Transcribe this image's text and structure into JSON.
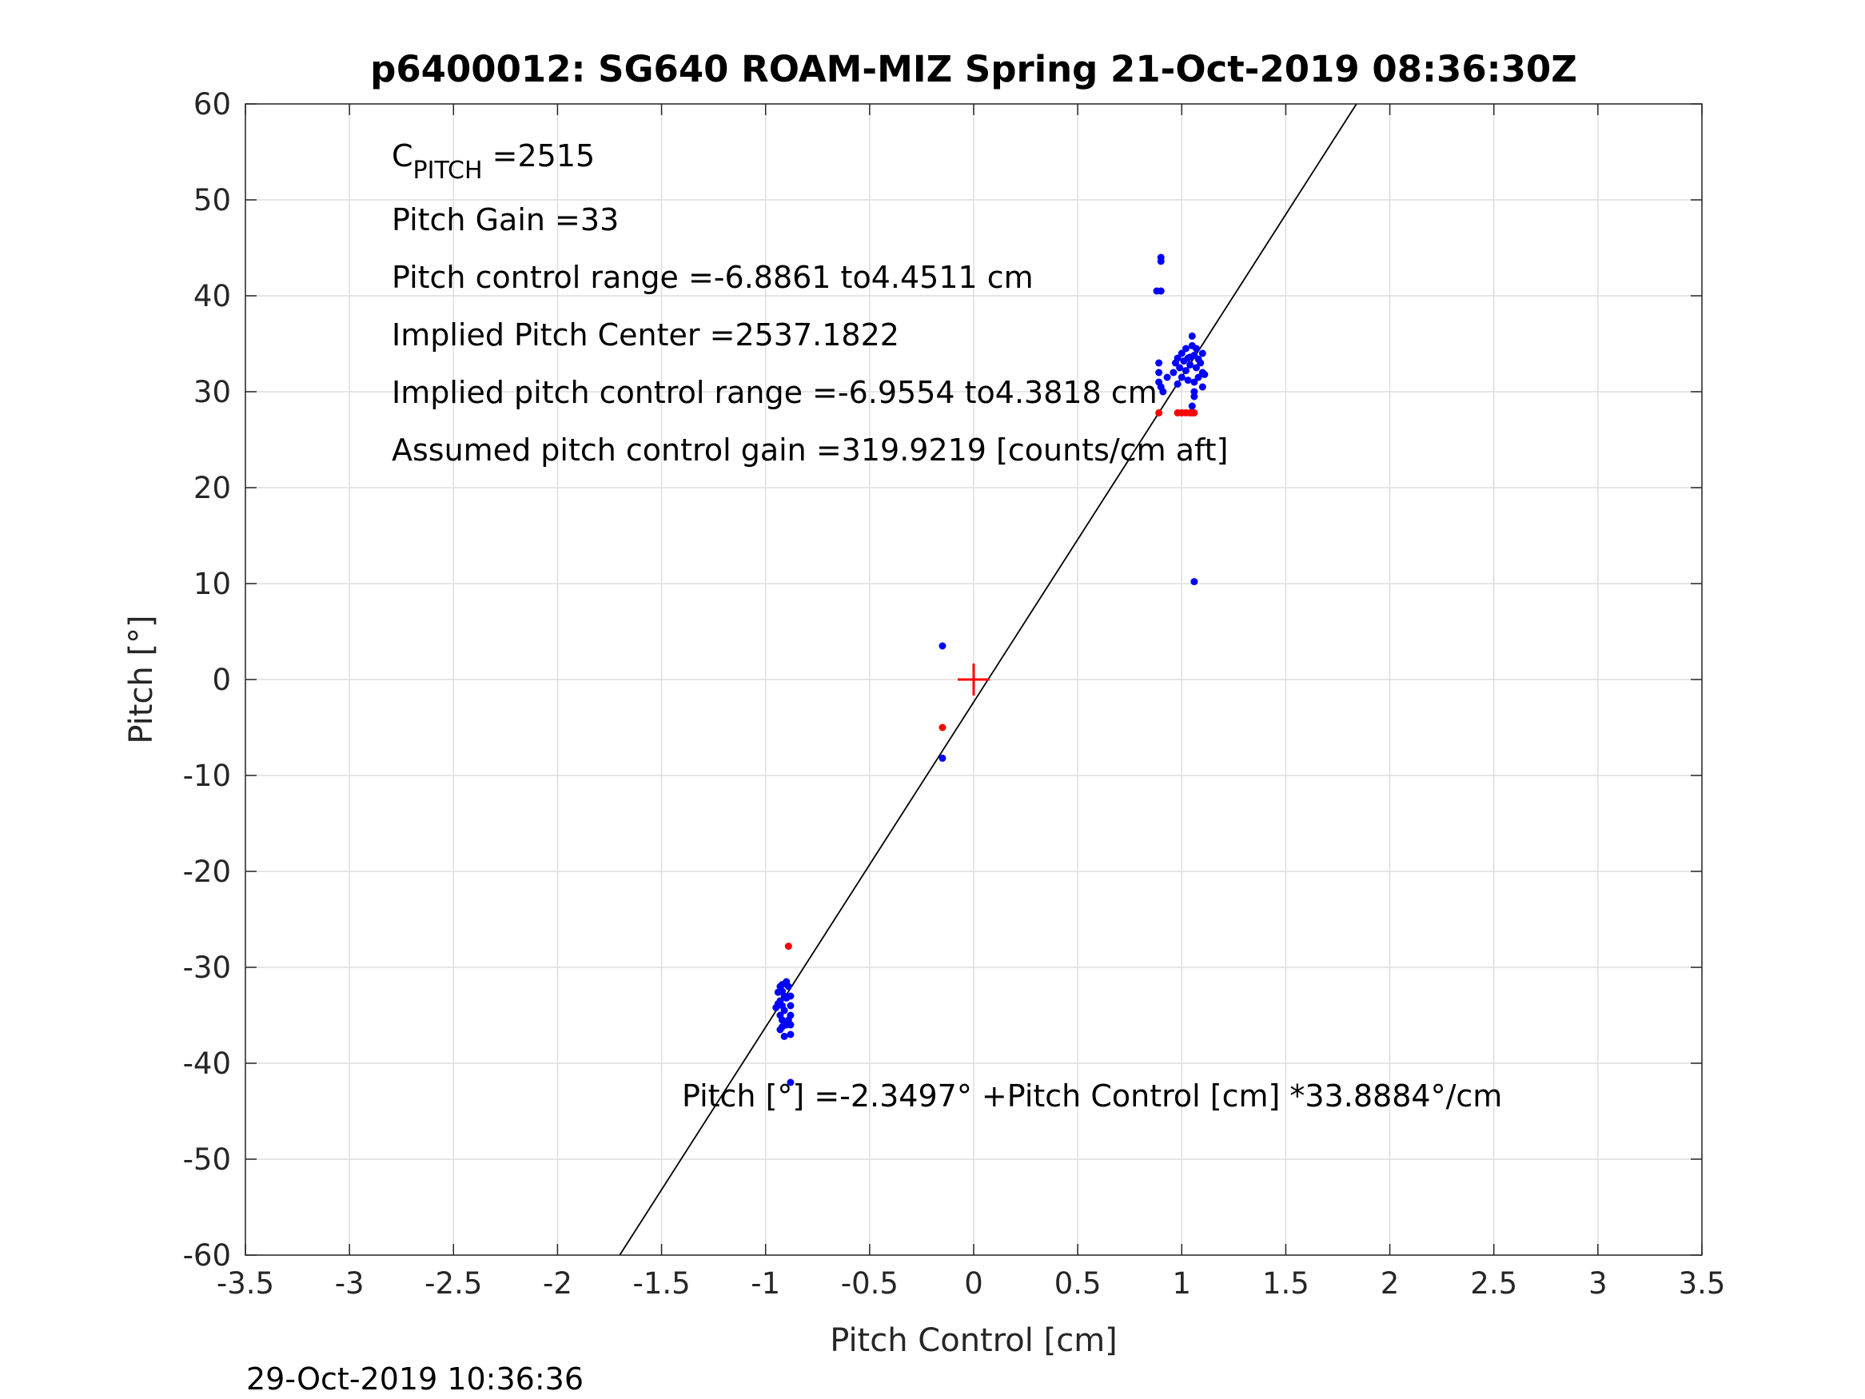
{
  "chart_data": {
    "type": "scatter",
    "title": "p6400012: SG640 ROAM-MIZ Spring 21-Oct-2019 08:36:30Z",
    "xlabel": "Pitch Control [cm]",
    "ylabel": "Pitch [°]",
    "xlim": [
      -3.5,
      3.5
    ],
    "ylim": [
      -60,
      60
    ],
    "xticks": [
      -3.5,
      -3,
      -2.5,
      -2,
      -1.5,
      -1,
      -0.5,
      0,
      0.5,
      1,
      1.5,
      2,
      2.5,
      3,
      3.5
    ],
    "yticks": [
      -60,
      -50,
      -40,
      -30,
      -20,
      -10,
      0,
      10,
      20,
      30,
      40,
      50,
      60
    ],
    "grid": true,
    "footer": "29-Oct-2019 10:36:36",
    "annotations": {
      "c_pitch_main": "C",
      "c_pitch_sub": "PITCH",
      "c_pitch_value": " =2515",
      "pitch_gain": "Pitch Gain =33",
      "pitch_control_range": "Pitch control range =-6.8861 to4.4511 cm",
      "implied_pitch_center": "Implied Pitch Center =2537.1822",
      "implied_pitch_control_range": "Implied pitch control range =-6.9554 to4.3818 cm",
      "assumed_gain": "Assumed pitch control gain =319.9219 [counts/cm aft]",
      "fit_equation": "Pitch [°] =-2.3497° +Pitch Control [cm] *33.8884°/cm"
    },
    "fit_line": {
      "intercept": -2.3497,
      "slope": 33.8884
    },
    "center_marker": {
      "x": 0,
      "y": 0
    },
    "series": [
      {
        "color": "#0000ff",
        "points": [
          [
            -0.93,
            -32
          ],
          [
            -0.92,
            -32.5
          ],
          [
            -0.91,
            -33
          ],
          [
            -0.93,
            -33.5
          ],
          [
            -0.92,
            -34
          ],
          [
            -0.91,
            -34.5
          ],
          [
            -0.93,
            -35
          ],
          [
            -0.92,
            -35.5
          ],
          [
            -0.9,
            -36
          ],
          [
            -0.94,
            -33.8
          ],
          [
            -0.89,
            -32
          ],
          [
            -0.88,
            -33
          ],
          [
            -0.88,
            -34
          ],
          [
            -0.88,
            -35
          ],
          [
            -0.88,
            -36
          ],
          [
            -0.88,
            -37
          ],
          [
            -0.9,
            -31.5
          ],
          [
            -0.92,
            -31.8
          ],
          [
            -0.95,
            -34.2
          ],
          [
            -0.93,
            -36.5
          ],
          [
            -0.91,
            -37.2
          ],
          [
            -0.89,
            -35.5
          ],
          [
            -0.94,
            -32.6
          ],
          [
            -0.9,
            -33.2
          ],
          [
            -0.92,
            -36.2
          ],
          [
            -0.88,
            -42
          ],
          [
            0.9,
            44
          ],
          [
            0.9,
            43.6
          ],
          [
            0.88,
            40.5
          ],
          [
            0.9,
            40.5
          ],
          [
            0.89,
            33
          ],
          [
            0.89,
            32
          ],
          [
            0.89,
            31
          ],
          [
            0.9,
            30.5
          ],
          [
            0.91,
            30
          ],
          [
            0.93,
            31.5
          ],
          [
            0.96,
            32
          ],
          [
            0.97,
            33
          ],
          [
            0.98,
            33.5
          ],
          [
            0.99,
            32.5
          ],
          [
            1.0,
            34
          ],
          [
            1.01,
            33.2
          ],
          [
            1.02,
            34.5
          ],
          [
            1.03,
            33.5
          ],
          [
            1.04,
            32.8
          ],
          [
            1.05,
            35.8
          ],
          [
            1.05,
            34.8
          ],
          [
            1.06,
            33.8
          ],
          [
            1.07,
            32.5
          ],
          [
            1.08,
            31.5
          ],
          [
            1.09,
            33
          ],
          [
            1.1,
            34
          ],
          [
            1.1,
            32
          ],
          [
            1.1,
            30.5
          ],
          [
            1.11,
            31.8
          ],
          [
            1.06,
            31
          ],
          [
            1.06,
            30
          ],
          [
            1.06,
            29.5
          ],
          [
            1.05,
            28.5
          ],
          [
            1.07,
            34.5
          ],
          [
            1.03,
            31.2
          ],
          [
            1.02,
            32.2
          ],
          [
            1.0,
            31.5
          ],
          [
            0.98,
            30.8
          ],
          [
            1.04,
            33.6
          ],
          [
            1.08,
            33.4
          ],
          [
            1.06,
            10.2
          ],
          [
            -0.15,
            3.5
          ],
          [
            -0.15,
            -8.2
          ]
        ]
      },
      {
        "color": "#ff0000",
        "points": [
          [
            -0.89,
            -27.8
          ],
          [
            -0.15,
            -5
          ],
          [
            0.89,
            27.8
          ],
          [
            0.98,
            27.8
          ],
          [
            1.0,
            27.8
          ],
          [
            1.02,
            27.8
          ],
          [
            1.04,
            27.8
          ],
          [
            1.05,
            27.8
          ],
          [
            1.06,
            27.8
          ]
        ]
      }
    ]
  }
}
